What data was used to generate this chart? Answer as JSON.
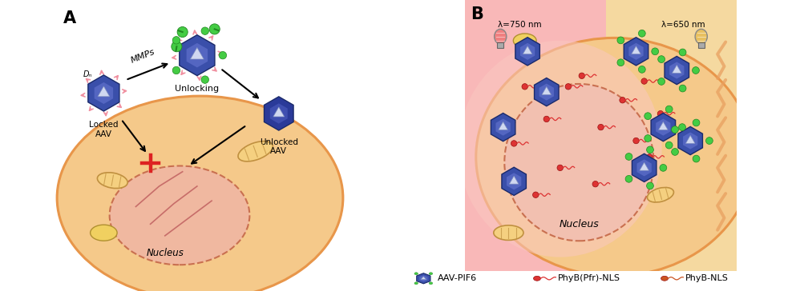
{
  "figsize": [
    9.98,
    3.64
  ],
  "dpi": 100,
  "bg_color": "#ffffff",
  "panel_A_label": "A",
  "panel_B_label": "B",
  "cell_fill": "#f5c98a",
  "cell_stroke": "#e8964a",
  "nucleus_fill": "#f0b8a0",
  "nucleus_stroke": "#c97050",
  "pink_bg": "#f9b8b8",
  "yellow_bg": "#f5d9a0",
  "aav_body": "#3a4faa",
  "aav_face": "#6070cc",
  "aav_triangle": "#d0d8f0",
  "green_blob": "#44cc44",
  "pink_spike": "#f090a0",
  "red_cross_color": "#dd2222",
  "arrow_color": "#333333",
  "mmp_label": "MMPs",
  "unlocking_label": "Unlocking",
  "locked_label": "Locked\nAAV",
  "unlocked_label": "Unlocked\nAAV",
  "nucleus_label_A": "Nucleus",
  "nucleus_label_B": "Nucleus",
  "lambda750_label": "λ=750 nm",
  "lambda650_label": "λ=650 nm",
  "legend_aav": "AAV-PIF6",
  "legend_phyb_pfr": "PhyB(Pfr)-NLS",
  "legend_phyb": "PhyB-NLS",
  "dn_label": "Dₙ",
  "red_dot_color": "#dd2222",
  "orange_dot_color": "#dd4422",
  "pink_light_color": "#f08080",
  "yellow_light_color": "#e8c060",
  "mito_fill": "#f5d080",
  "mito_edge": "#c09040",
  "actin_color": "#c06060",
  "spike_color": "#f090a0",
  "cell_wall_color": "#e8a060"
}
